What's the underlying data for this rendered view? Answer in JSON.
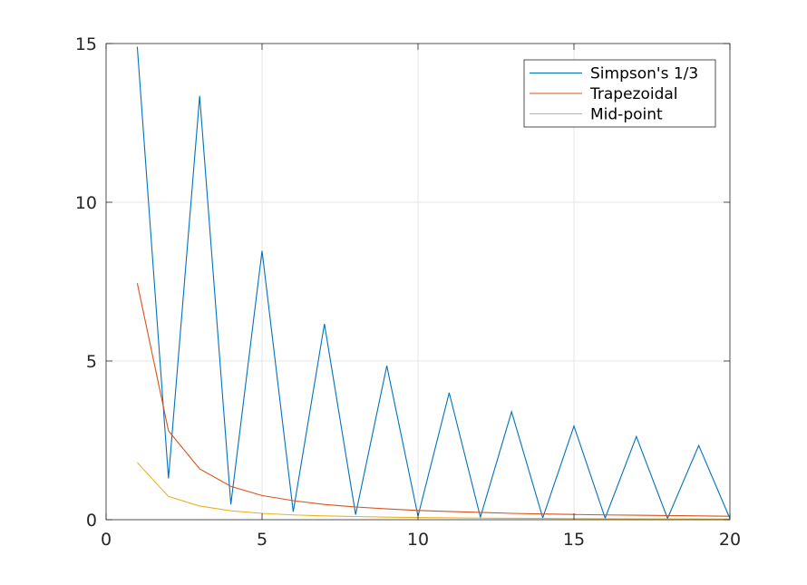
{
  "chart_data": {
    "type": "line",
    "title": "",
    "xlabel": "",
    "ylabel": "",
    "xlim": [
      0,
      20
    ],
    "ylim": [
      0,
      15
    ],
    "xticks": [
      0,
      5,
      10,
      15,
      20
    ],
    "yticks": [
      0,
      5,
      10,
      15
    ],
    "xtick_labels": [
      "0",
      "5",
      "10",
      "15",
      "20"
    ],
    "ytick_labels": [
      "0",
      "5",
      "10",
      "15"
    ],
    "grid": true,
    "legend_position": "top-right",
    "x": [
      1,
      2,
      3,
      4,
      5,
      6,
      7,
      8,
      9,
      10,
      11,
      12,
      13,
      14,
      15,
      16,
      17,
      18,
      19,
      20
    ],
    "series": [
      {
        "name": "Simpson's 1/3",
        "color": "#0072BD",
        "values": [
          14.9,
          1.3,
          13.35,
          0.48,
          8.47,
          0.25,
          6.17,
          0.16,
          4.85,
          0.11,
          4.0,
          0.08,
          3.4,
          0.06,
          2.95,
          0.05,
          2.62,
          0.04,
          2.34,
          0.035
        ]
      },
      {
        "name": "Trapezoidal",
        "color": "#D95319",
        "values": [
          7.45,
          2.8,
          1.6,
          1.05,
          0.76,
          0.6,
          0.48,
          0.4,
          0.34,
          0.29,
          0.26,
          0.23,
          0.2,
          0.18,
          0.165,
          0.15,
          0.14,
          0.13,
          0.12,
          0.11
        ]
      },
      {
        "name": "Mid-point",
        "color": "#EDB120",
        "values": [
          1.8,
          0.73,
          0.43,
          0.28,
          0.2,
          0.15,
          0.12,
          0.1,
          0.08,
          0.07,
          0.06,
          0.05,
          0.045,
          0.04,
          0.035,
          0.03,
          0.028,
          0.025,
          0.023,
          0.02
        ]
      }
    ]
  }
}
